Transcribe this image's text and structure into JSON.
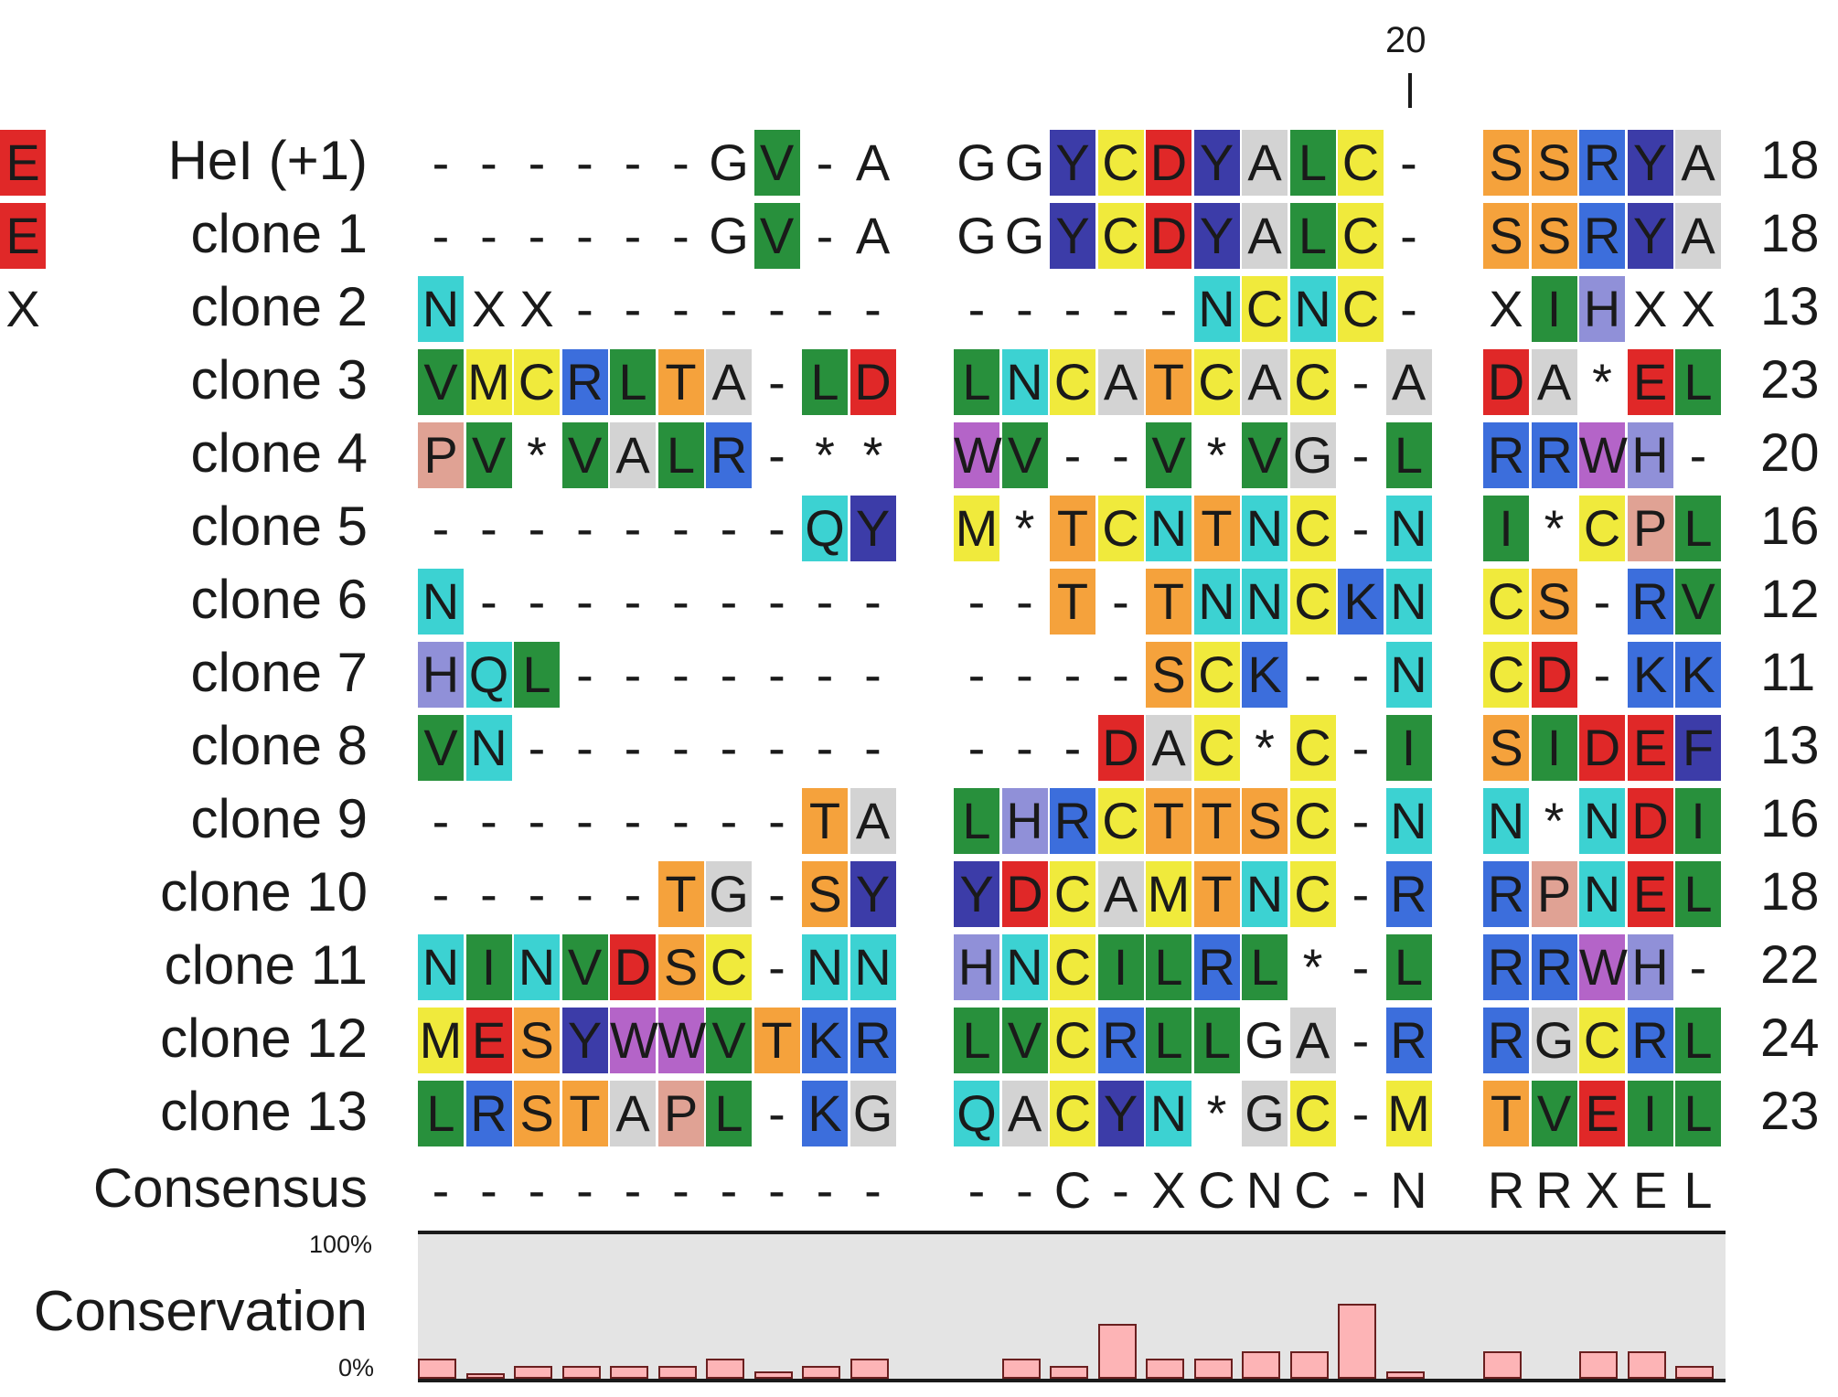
{
  "alignment": {
    "position_marker": "20",
    "rows": [
      {
        "name": "HeI (+1)",
        "seq": "------GV-AG GYCDYALC-S SRYAE",
        "count": "18"
      },
      {
        "name": "clone 1",
        "seq": "------GV-AG GYCDYALC-S SRYAE",
        "count": "18"
      },
      {
        "name": "clone 2",
        "seq": "NXX-------- ----NCNC-X IHXXX",
        "count": "13"
      },
      {
        "name": "clone 3",
        "seq": "VMCRLTA-LD LNCATCAC-A DA*EL",
        "count": "23"
      },
      {
        "name": "clone 4",
        "seq": "PV*VALR-** WV--V*VG-L RRWH-",
        "count": "20"
      },
      {
        "name": "clone 5",
        "seq": "--------QY M*TCNTNC-N I*CPL",
        "count": "16"
      },
      {
        "name": "clone 6",
        "seq": "N--------- --T-TNNCKN CS-RV",
        "count": "12"
      },
      {
        "name": "clone 7",
        "seq": "HQL------- ----SCK--N CD-KK",
        "count": "11"
      },
      {
        "name": "clone 8",
        "seq": "VN-------- ---DAC*C-I SIDEF",
        "count": "13"
      },
      {
        "name": "clone 9",
        "seq": "--------TA LHRCTTSC-N N*NDI",
        "count": "16"
      },
      {
        "name": "clone 10",
        "seq": "-----TG-SY YDCAMTNC-R RPNEL",
        "count": "18"
      },
      {
        "name": "clone 11",
        "seq": "NINVDSC-NN HNCILRL*-L RRWH-",
        "count": "22"
      },
      {
        "name": "clone 12",
        "seq": "MESYWWVTKR LVCRLLGA-R RGCRL",
        "count": "24"
      },
      {
        "name": "clone 13",
        "seq": "LRSTAPL-KG QACYN*GC-M TVEIL",
        "count": "23"
      }
    ],
    "consensus": {
      "name": "Consensus",
      "seq": "---------- --C-XCNC-N RRXEL"
    },
    "residue_colors": {
      "A": "#d3d3d3",
      "G": "#d3d3d3",
      "C": "#f0ea3c",
      "D": "#e02828",
      "E": "#e02828",
      "F": "#3c3ca8",
      "Y": "#3c3ca8",
      "H": "#9090d8",
      "I": "#28903c",
      "L": "#28903c",
      "V": "#28903c",
      "M": "#f0ea3c",
      "K": "#3c6edc",
      "R": "#3c6edc",
      "N": "#3cd2d2",
      "Q": "#3cd2d2",
      "P": "#e0a294",
      "S": "#f5a23c",
      "T": "#f5a23c",
      "W": "#b464c8"
    },
    "uncolored_cells": [
      "0:6",
      "0:9",
      "0:10",
      "0:11",
      "1:6",
      "1:9",
      "1:10",
      "1:11",
      "12:16",
      "12:25"
    ]
  },
  "conservation": {
    "label": "Conservation",
    "axis_max": "100%",
    "axis_min": "0%",
    "bar_color": "#fdb4b6",
    "values_percent": [
      14,
      4,
      9,
      9,
      9,
      9,
      14,
      5,
      9,
      14,
      null,
      14,
      9,
      38,
      14,
      14,
      19,
      19,
      52,
      5,
      19,
      null,
      19,
      19,
      9,
      14,
      24
    ]
  }
}
